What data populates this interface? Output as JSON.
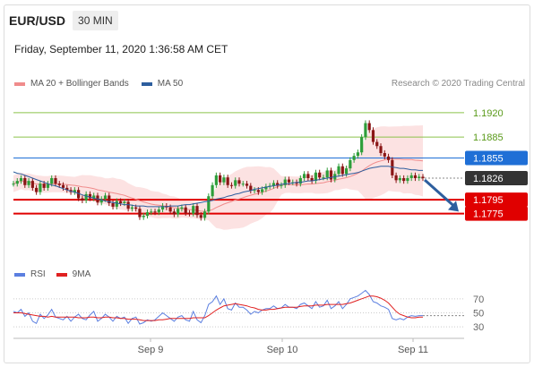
{
  "header": {
    "pair": "EUR/USD",
    "timeframe": "30 MIN",
    "datetime": "Friday, September 11, 2020 1:36:58 AM CET",
    "credit": "Research © 2020 Trading Central"
  },
  "legend_main": [
    {
      "label": "MA 20 + Bollinger Bands",
      "color": "#f08c8c"
    },
    {
      "label": "MA 50",
      "color": "#2d5e9e"
    }
  ],
  "legend_rsi": [
    {
      "label": "RSI",
      "color": "#5b7fe0"
    },
    {
      "label": "9MA",
      "color": "#e02020"
    }
  ],
  "chart_data": [
    {
      "type": "line",
      "name": "price",
      "x_labels": [
        "Sep 9",
        "Sep 10",
        "Sep 11"
      ],
      "ylim": [
        1.1745,
        1.1925
      ],
      "levels": [
        {
          "value": 1.192,
          "label": "1.1920",
          "style": "target",
          "color": "#8bc34a"
        },
        {
          "value": 1.1885,
          "label": "1.1885",
          "style": "target",
          "color": "#8bc34a"
        },
        {
          "value": 1.1855,
          "label": "1.1855",
          "style": "pivot",
          "color": "#1f6fd6"
        },
        {
          "value": 1.1826,
          "label": "1.1826",
          "style": "current",
          "color": "#333333"
        },
        {
          "value": 1.1795,
          "label": "1.1795",
          "style": "support",
          "color": "#e00000"
        },
        {
          "value": 1.1775,
          "label": "1.1775",
          "style": "support",
          "color": "#e00000"
        }
      ],
      "close": [
        1.1818,
        1.1822,
        1.1826,
        1.1816,
        1.1822,
        1.1812,
        1.1806,
        1.1818,
        1.1812,
        1.1818,
        1.1826,
        1.1818,
        1.1816,
        1.1812,
        1.1809,
        1.1806,
        1.1809,
        1.1797,
        1.1794,
        1.1803,
        1.1797,
        1.1801,
        1.1791,
        1.1796,
        1.1801,
        1.179,
        1.1785,
        1.1793,
        1.179,
        1.1792,
        1.1782,
        1.1784,
        1.1782,
        1.177,
        1.1772,
        1.1777,
        1.1778,
        1.1777,
        1.1781,
        1.1786,
        1.1784,
        1.1778,
        1.1774,
        1.1782,
        1.1784,
        1.1776,
        1.1775,
        1.1786,
        1.1773,
        1.1769,
        1.1778,
        1.18,
        1.1816,
        1.183,
        1.182,
        1.1827,
        1.1816,
        1.1815,
        1.1823,
        1.1818,
        1.1818,
        1.1815,
        1.1808,
        1.1809,
        1.1806,
        1.181,
        1.1814,
        1.1815,
        1.1819,
        1.1815,
        1.1816,
        1.1824,
        1.182,
        1.182,
        1.1818,
        1.1826,
        1.1832,
        1.1826,
        1.1822,
        1.1834,
        1.1827,
        1.1827,
        1.1837,
        1.1824,
        1.1832,
        1.1843,
        1.1832,
        1.184,
        1.1852,
        1.1858,
        1.1863,
        1.1885,
        1.1905,
        1.1895,
        1.1878,
        1.1872,
        1.1862,
        1.1857,
        1.1852,
        1.183,
        1.1823,
        1.1826,
        1.1822,
        1.1826,
        1.183,
        1.1826,
        1.1828,
        1.1826
      ],
      "ma50": [
        1.1835,
        1.1833,
        1.1832,
        1.183,
        1.1828,
        1.1826,
        1.1824,
        1.1822,
        1.182,
        1.1818,
        1.1816,
        1.1815,
        1.1813,
        1.1811,
        1.1809,
        1.1807,
        1.1806,
        1.1804,
        1.1802,
        1.18,
        1.1799,
        1.1797,
        1.1796,
        1.1795,
        1.1793,
        1.1792,
        1.1791,
        1.179,
        1.1789,
        1.1788,
        1.1788,
        1.1787,
        1.1786,
        1.1786,
        1.1786,
        1.1785,
        1.1785,
        1.1785,
        1.1785,
        1.1785,
        1.1785,
        1.1786,
        1.1786,
        1.1786,
        1.1787,
        1.1788,
        1.1788,
        1.1789,
        1.179,
        1.1791,
        1.1792,
        1.1793,
        1.1794,
        1.1796,
        1.1797,
        1.1798,
        1.18,
        1.1801,
        1.1803,
        1.1804,
        1.1806,
        1.1807,
        1.1808,
        1.181,
        1.1811,
        1.1812,
        1.1813,
        1.1814,
        1.1815,
        1.1816,
        1.1817,
        1.1818,
        1.1818,
        1.1819,
        1.182,
        1.182,
        1.1821,
        1.1822,
        1.1822,
        1.1823,
        1.1824,
        1.1825,
        1.1826,
        1.1827,
        1.1828,
        1.1829,
        1.183,
        1.1831,
        1.1832,
        1.1833,
        1.1834,
        1.1836,
        1.1838,
        1.184,
        1.1841,
        1.1842,
        1.1843,
        1.1843,
        1.1843,
        1.1842,
        1.1841,
        1.184,
        1.184,
        1.1839,
        1.1838,
        1.1838,
        1.1837,
        1.1837
      ]
    },
    {
      "type": "line",
      "name": "RSI",
      "ylim": [
        20,
        80
      ],
      "y_ticks": [
        70,
        50,
        30
      ],
      "rsi": [
        52,
        50,
        55,
        45,
        50,
        38,
        35,
        48,
        42,
        47,
        55,
        44,
        42,
        40,
        45,
        38,
        44,
        48,
        42,
        40,
        47,
        52,
        38,
        42,
        48,
        44,
        38,
        45,
        42,
        44,
        35,
        42,
        44,
        34,
        36,
        40,
        38,
        40,
        45,
        50,
        46,
        42,
        38,
        44,
        46,
        40,
        38,
        52,
        40,
        36,
        46,
        62,
        66,
        74,
        62,
        70,
        56,
        54,
        64,
        58,
        58,
        54,
        48,
        52,
        50,
        54,
        56,
        56,
        60,
        56,
        57,
        62,
        58,
        58,
        56,
        62,
        64,
        60,
        56,
        66,
        58,
        60,
        68,
        56,
        60,
        66,
        56,
        62,
        70,
        72,
        74,
        78,
        82,
        76,
        66,
        64,
        60,
        58,
        55,
        42,
        40,
        42,
        40,
        44,
        46,
        45,
        46,
        46
      ],
      "ma9": [
        50,
        50,
        50,
        49,
        48,
        47,
        46,
        45,
        45,
        44,
        45,
        44,
        44,
        44,
        44,
        44,
        44,
        43,
        43,
        43,
        44,
        44,
        43,
        43,
        44,
        44,
        43,
        43,
        42,
        42,
        41,
        41,
        41,
        40,
        39,
        39,
        39,
        39,
        40,
        40,
        41,
        42,
        42,
        42,
        42,
        42,
        42,
        43,
        43,
        43,
        43,
        46,
        50,
        54,
        57,
        60,
        61,
        62,
        63,
        62,
        61,
        60,
        58,
        57,
        55,
        54,
        54,
        55,
        55,
        56,
        57,
        58,
        58,
        58,
        58,
        59,
        60,
        60,
        60,
        61,
        61,
        61,
        62,
        62,
        62,
        62,
        62,
        63,
        64,
        66,
        68,
        70,
        72,
        74,
        74,
        73,
        71,
        68,
        64,
        58,
        52,
        48,
        46,
        44,
        43,
        43,
        44,
        44
      ]
    }
  ]
}
